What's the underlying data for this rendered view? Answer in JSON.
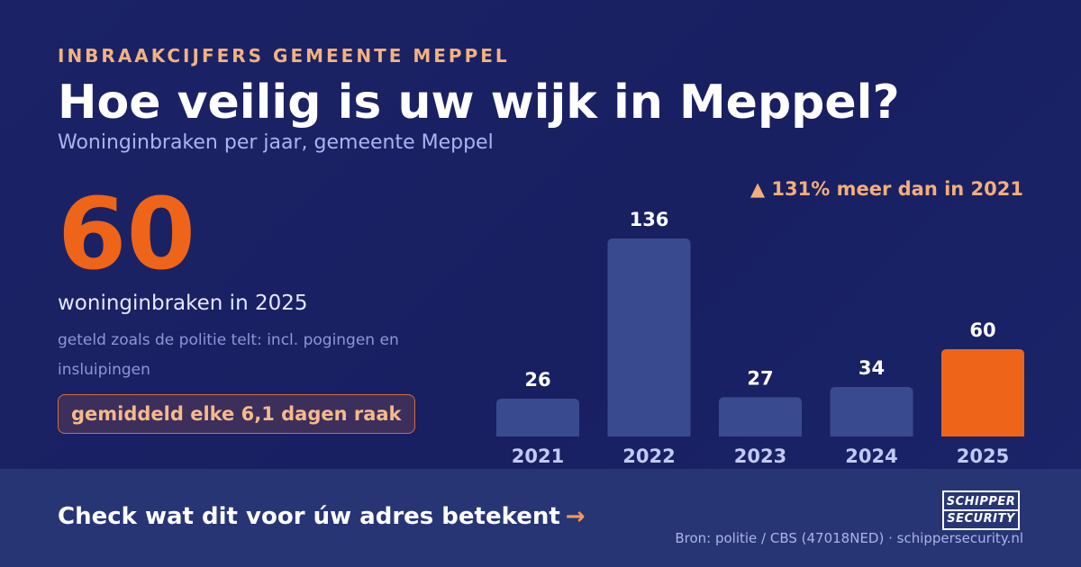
{
  "header": {
    "eyebrow": "INBRAAKCIJFERS GEMEENTE MEPPEL",
    "title": "Hoe veilig is uw wijk in Meppel?",
    "subtitle": "Woninginbraken per jaar, gemeente Meppel"
  },
  "highlight": {
    "value": "60",
    "caption": "woninginbraken in 2025",
    "note": "geteld zoals de politie telt: incl. pogingen en insluipingen",
    "pill": "gemiddeld elke 6,1 dagen raak"
  },
  "change": {
    "icon": "triangle-up-icon",
    "text": "▲ 131% meer dan in 2021"
  },
  "chart_data": {
    "type": "bar",
    "categories": [
      "2021",
      "2022",
      "2023",
      "2024",
      "2025"
    ],
    "values": [
      26,
      136,
      27,
      34,
      60
    ],
    "ylim": [
      0,
      140
    ],
    "grid": false,
    "colors": {
      "default": "#3a4a8e",
      "highlight": "#ee6419",
      "highlight_category": "2025",
      "value_label": "#ffffff",
      "tick_label": "#c2c9f4"
    }
  },
  "footer": {
    "cta": "Check wat dit voor úw adres betekent",
    "cta_arrow": "→",
    "logo_line1": "SCHIPPER",
    "logo_line2": "SECURITY",
    "source": "Bron: politie / CBS (47018NED) · schippersecurity.nl"
  }
}
